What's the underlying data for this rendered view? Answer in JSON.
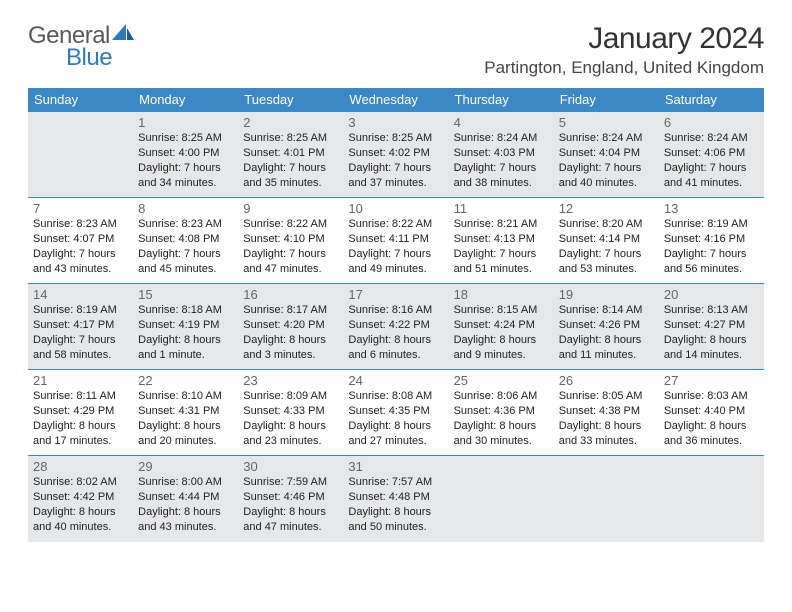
{
  "brand": {
    "part1": "General",
    "part2": "Blue"
  },
  "title": "January 2024",
  "location": "Partington, England, United Kingdom",
  "colors": {
    "header_bg": "#3b88c6",
    "header_text": "#ffffff",
    "shaded_cell": "#e6e7e9",
    "border": "#3b88c6",
    "logo_gray": "#5a5a5a",
    "logo_blue": "#2f7ac0"
  },
  "day_headers": [
    "Sunday",
    "Monday",
    "Tuesday",
    "Wednesday",
    "Thursday",
    "Friday",
    "Saturday"
  ],
  "weeks": [
    [
      {
        "n": "",
        "sr": "",
        "ss": "",
        "dl": ""
      },
      {
        "n": "1",
        "sr": "Sunrise: 8:25 AM",
        "ss": "Sunset: 4:00 PM",
        "dl": "Daylight: 7 hours and 34 minutes."
      },
      {
        "n": "2",
        "sr": "Sunrise: 8:25 AM",
        "ss": "Sunset: 4:01 PM",
        "dl": "Daylight: 7 hours and 35 minutes."
      },
      {
        "n": "3",
        "sr": "Sunrise: 8:25 AM",
        "ss": "Sunset: 4:02 PM",
        "dl": "Daylight: 7 hours and 37 minutes."
      },
      {
        "n": "4",
        "sr": "Sunrise: 8:24 AM",
        "ss": "Sunset: 4:03 PM",
        "dl": "Daylight: 7 hours and 38 minutes."
      },
      {
        "n": "5",
        "sr": "Sunrise: 8:24 AM",
        "ss": "Sunset: 4:04 PM",
        "dl": "Daylight: 7 hours and 40 minutes."
      },
      {
        "n": "6",
        "sr": "Sunrise: 8:24 AM",
        "ss": "Sunset: 4:06 PM",
        "dl": "Daylight: 7 hours and 41 minutes."
      }
    ],
    [
      {
        "n": "7",
        "sr": "Sunrise: 8:23 AM",
        "ss": "Sunset: 4:07 PM",
        "dl": "Daylight: 7 hours and 43 minutes."
      },
      {
        "n": "8",
        "sr": "Sunrise: 8:23 AM",
        "ss": "Sunset: 4:08 PM",
        "dl": "Daylight: 7 hours and 45 minutes."
      },
      {
        "n": "9",
        "sr": "Sunrise: 8:22 AM",
        "ss": "Sunset: 4:10 PM",
        "dl": "Daylight: 7 hours and 47 minutes."
      },
      {
        "n": "10",
        "sr": "Sunrise: 8:22 AM",
        "ss": "Sunset: 4:11 PM",
        "dl": "Daylight: 7 hours and 49 minutes."
      },
      {
        "n": "11",
        "sr": "Sunrise: 8:21 AM",
        "ss": "Sunset: 4:13 PM",
        "dl": "Daylight: 7 hours and 51 minutes."
      },
      {
        "n": "12",
        "sr": "Sunrise: 8:20 AM",
        "ss": "Sunset: 4:14 PM",
        "dl": "Daylight: 7 hours and 53 minutes."
      },
      {
        "n": "13",
        "sr": "Sunrise: 8:19 AM",
        "ss": "Sunset: 4:16 PM",
        "dl": "Daylight: 7 hours and 56 minutes."
      }
    ],
    [
      {
        "n": "14",
        "sr": "Sunrise: 8:19 AM",
        "ss": "Sunset: 4:17 PM",
        "dl": "Daylight: 7 hours and 58 minutes."
      },
      {
        "n": "15",
        "sr": "Sunrise: 8:18 AM",
        "ss": "Sunset: 4:19 PM",
        "dl": "Daylight: 8 hours and 1 minute."
      },
      {
        "n": "16",
        "sr": "Sunrise: 8:17 AM",
        "ss": "Sunset: 4:20 PM",
        "dl": "Daylight: 8 hours and 3 minutes."
      },
      {
        "n": "17",
        "sr": "Sunrise: 8:16 AM",
        "ss": "Sunset: 4:22 PM",
        "dl": "Daylight: 8 hours and 6 minutes."
      },
      {
        "n": "18",
        "sr": "Sunrise: 8:15 AM",
        "ss": "Sunset: 4:24 PM",
        "dl": "Daylight: 8 hours and 9 minutes."
      },
      {
        "n": "19",
        "sr": "Sunrise: 8:14 AM",
        "ss": "Sunset: 4:26 PM",
        "dl": "Daylight: 8 hours and 11 minutes."
      },
      {
        "n": "20",
        "sr": "Sunrise: 8:13 AM",
        "ss": "Sunset: 4:27 PM",
        "dl": "Daylight: 8 hours and 14 minutes."
      }
    ],
    [
      {
        "n": "21",
        "sr": "Sunrise: 8:11 AM",
        "ss": "Sunset: 4:29 PM",
        "dl": "Daylight: 8 hours and 17 minutes."
      },
      {
        "n": "22",
        "sr": "Sunrise: 8:10 AM",
        "ss": "Sunset: 4:31 PM",
        "dl": "Daylight: 8 hours and 20 minutes."
      },
      {
        "n": "23",
        "sr": "Sunrise: 8:09 AM",
        "ss": "Sunset: 4:33 PM",
        "dl": "Daylight: 8 hours and 23 minutes."
      },
      {
        "n": "24",
        "sr": "Sunrise: 8:08 AM",
        "ss": "Sunset: 4:35 PM",
        "dl": "Daylight: 8 hours and 27 minutes."
      },
      {
        "n": "25",
        "sr": "Sunrise: 8:06 AM",
        "ss": "Sunset: 4:36 PM",
        "dl": "Daylight: 8 hours and 30 minutes."
      },
      {
        "n": "26",
        "sr": "Sunrise: 8:05 AM",
        "ss": "Sunset: 4:38 PM",
        "dl": "Daylight: 8 hours and 33 minutes."
      },
      {
        "n": "27",
        "sr": "Sunrise: 8:03 AM",
        "ss": "Sunset: 4:40 PM",
        "dl": "Daylight: 8 hours and 36 minutes."
      }
    ],
    [
      {
        "n": "28",
        "sr": "Sunrise: 8:02 AM",
        "ss": "Sunset: 4:42 PM",
        "dl": "Daylight: 8 hours and 40 minutes."
      },
      {
        "n": "29",
        "sr": "Sunrise: 8:00 AM",
        "ss": "Sunset: 4:44 PM",
        "dl": "Daylight: 8 hours and 43 minutes."
      },
      {
        "n": "30",
        "sr": "Sunrise: 7:59 AM",
        "ss": "Sunset: 4:46 PM",
        "dl": "Daylight: 8 hours and 47 minutes."
      },
      {
        "n": "31",
        "sr": "Sunrise: 7:57 AM",
        "ss": "Sunset: 4:48 PM",
        "dl": "Daylight: 8 hours and 50 minutes."
      },
      {
        "n": "",
        "sr": "",
        "ss": "",
        "dl": ""
      },
      {
        "n": "",
        "sr": "",
        "ss": "",
        "dl": ""
      },
      {
        "n": "",
        "sr": "",
        "ss": "",
        "dl": ""
      }
    ]
  ],
  "shaded_rows": [
    0,
    2,
    4
  ]
}
